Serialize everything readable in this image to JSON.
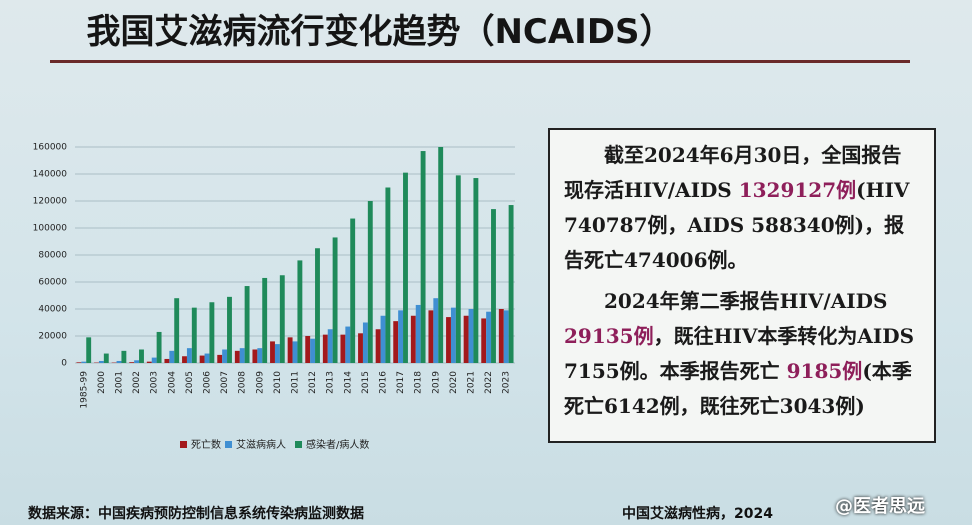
{
  "title": "我国艾滋病流行变化趋势（NCAIDS）",
  "chart_data": {
    "type": "bar",
    "categories": [
      "1985-99",
      "2000",
      "2001",
      "2002",
      "2003",
      "2004",
      "2005",
      "2006",
      "2007",
      "2008",
      "2009",
      "2010",
      "2011",
      "2012",
      "2013",
      "2014",
      "2015",
      "2016",
      "2017",
      "2018",
      "2019",
      "2020",
      "2021",
      "2022",
      "2023"
    ],
    "series": [
      {
        "name": "死亡数",
        "color": "#a3191c",
        "values": [
          500,
          300,
          300,
          600,
          1000,
          3000,
          5000,
          5500,
          6000,
          9000,
          10000,
          16000,
          19000,
          20000,
          21000,
          21000,
          22000,
          25000,
          31000,
          35000,
          39000,
          34000,
          35000,
          33000,
          40000
        ]
      },
      {
        "name": "艾滋病病人",
        "color": "#3f8fd2",
        "values": [
          1000,
          1500,
          1500,
          2000,
          4000,
          9000,
          11000,
          7000,
          10000,
          11000,
          11000,
          14000,
          16000,
          18000,
          25000,
          27000,
          30000,
          35000,
          39000,
          43000,
          48000,
          41000,
          40000,
          38000,
          39000
        ]
      },
      {
        "name": "感染者/病人数",
        "color": "#1f8a5a",
        "values": [
          19000,
          7000,
          9000,
          10000,
          23000,
          48000,
          41000,
          45000,
          49000,
          57000,
          63000,
          65000,
          76000,
          85000,
          93000,
          107000,
          120000,
          130000,
          141000,
          157000,
          160000,
          139000,
          137000,
          114000,
          117000
        ]
      }
    ],
    "ylim": [
      0,
      160000
    ],
    "yticks": [
      0,
      20000,
      40000,
      60000,
      80000,
      100000,
      120000,
      140000,
      160000
    ],
    "grid": true
  },
  "info_box": {
    "paragraphs": [
      [
        {
          "text": "截至2024年6月30日，全国报告现存活HIV/AIDS "
        },
        {
          "text": "1329127例",
          "color": "#8e1f5a"
        },
        {
          "text": "(HIV 740787例，AIDS 588340例)，报告死亡474006例。"
        }
      ],
      [
        {
          "text": "2024年第二季报告HIV/AIDS "
        },
        {
          "text": "29135例",
          "color": "#8e1f5a"
        },
        {
          "text": "，既往HIV本季转化为AIDS 7155例。本季报告死亡 "
        },
        {
          "text": "9185例",
          "color": "#8e1f5a"
        },
        {
          "text": "(本季死亡6142例，既往死亡3043例)"
        }
      ]
    ]
  },
  "footer": {
    "source": "数据来源：中国疾病预防控制信息系统传染病监测数据",
    "publication": "中国艾滋病性病，2024",
    "watermark": "@医者思远"
  }
}
